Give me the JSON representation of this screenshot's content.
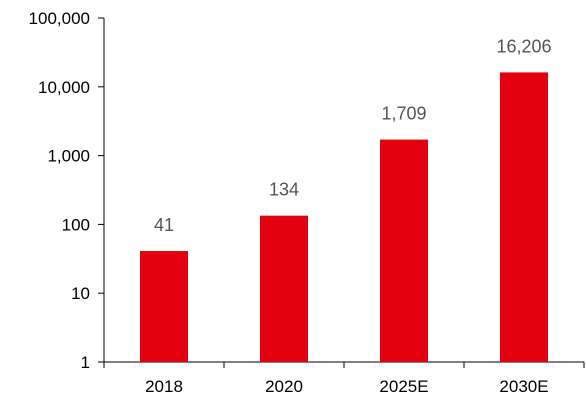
{
  "chart_data": {
    "type": "bar",
    "categories": [
      "2018",
      "2020",
      "2025E",
      "2030E"
    ],
    "values": [
      41,
      134,
      1709,
      16206
    ],
    "data_labels": [
      "41",
      "134",
      "1,709",
      "16,206"
    ],
    "y_scale": "log",
    "ylim": [
      1,
      100000
    ],
    "y_ticks": [
      1,
      10,
      100,
      1000,
      10000,
      100000
    ],
    "y_tick_labels": [
      "1",
      "10",
      "100",
      "1,000",
      "10,000",
      "100,000"
    ],
    "grid": false,
    "legend": "none",
    "bar_color": "#E3000F"
  }
}
